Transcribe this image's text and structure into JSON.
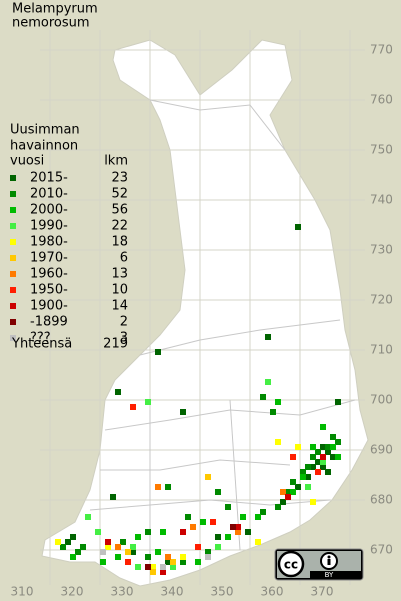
{
  "title": [
    "Melampyrum",
    "nemorosum"
  ],
  "legend": {
    "header": [
      "Uusimman",
      "havainnon",
      "vuosi"
    ],
    "count_header": "lkm",
    "entries": [
      {
        "label": "2015-",
        "count": 23,
        "color": "#006400",
        "squares": [
          [
            359,
            734
          ],
          [
            331,
            709
          ],
          [
            353,
            712
          ],
          [
            336,
            697
          ],
          [
            323,
            701
          ],
          [
            367,
            699
          ],
          [
            364,
            690
          ],
          [
            365,
            689
          ],
          [
            366,
            688
          ],
          [
            363,
            687
          ],
          [
            362,
            686
          ],
          [
            364,
            686
          ],
          [
            361,
            684
          ],
          [
            365,
            685
          ],
          [
            359,
            682
          ],
          [
            356,
            679
          ],
          [
            314,
            672
          ],
          [
            313,
            671
          ],
          [
            326,
            669
          ],
          [
            333,
            667
          ],
          [
            343,
            672
          ],
          [
            349,
            673
          ],
          [
            322,
            680
          ]
        ]
      },
      {
        "label": "2010-",
        "count": 52,
        "color": "#008a00",
        "squares": [
          [
            352,
            700
          ],
          [
            354,
            697
          ],
          [
            366,
            692
          ],
          [
            367,
            691
          ],
          [
            365,
            690
          ],
          [
            363,
            689
          ],
          [
            362,
            688
          ],
          [
            361,
            686
          ],
          [
            360,
            685
          ],
          [
            358,
            683
          ],
          [
            357,
            681
          ],
          [
            355,
            678
          ],
          [
            352,
            677
          ],
          [
            345,
            678
          ],
          [
            343,
            681
          ],
          [
            333,
            682
          ],
          [
            337,
            676
          ],
          [
            329,
            673
          ],
          [
            324,
            671
          ],
          [
            316,
            670
          ],
          [
            315,
            669
          ],
          [
            312,
            670
          ],
          [
            329,
            668
          ],
          [
            336,
            667
          ],
          [
            341,
            669
          ]
        ]
      },
      {
        "label": "2000-",
        "count": 56,
        "color": "#00bb00",
        "squares": [
          [
            355,
            699
          ],
          [
            364,
            694
          ],
          [
            366,
            690
          ],
          [
            367,
            688
          ],
          [
            362,
            690
          ],
          [
            360,
            684
          ],
          [
            358,
            681
          ],
          [
            351,
            676
          ],
          [
            348,
            676
          ],
          [
            340,
            675
          ],
          [
            332,
            673
          ],
          [
            327,
            672
          ],
          [
            323,
            668
          ],
          [
            320,
            667
          ],
          [
            314,
            668
          ],
          [
            311,
            671
          ],
          [
            331,
            669
          ],
          [
            345,
            672
          ],
          [
            339,
            667
          ]
        ]
      },
      {
        "label": "1990-",
        "count": 22,
        "color": "#44ee44",
        "squares": [
          [
            329,
            699
          ],
          [
            353,
            703
          ],
          [
            364,
            687
          ],
          [
            361,
            682
          ],
          [
            317,
            676
          ],
          [
            319,
            673
          ],
          [
            326,
            670
          ],
          [
            334,
            666
          ],
          [
            343,
            670
          ],
          [
            327,
            666
          ]
        ]
      },
      {
        "label": "1980-",
        "count": 18,
        "color": "#ffff00",
        "squares": [
          [
            355,
            691
          ],
          [
            359,
            690
          ],
          [
            362,
            679
          ],
          [
            321,
            670
          ],
          [
            311,
            671
          ],
          [
            336,
            668
          ],
          [
            351,
            671
          ],
          [
            330,
            666
          ]
        ]
      },
      {
        "label": "1970-",
        "count": 6,
        "color": "#ffc800",
        "squares": [
          [
            341,
            684
          ],
          [
            334,
            667
          ],
          [
            325,
            669
          ],
          [
            330,
            665
          ]
        ]
      },
      {
        "label": "1960-",
        "count": 13,
        "color": "#ff7a00",
        "squares": [
          [
            331,
            682
          ],
          [
            356,
            681
          ],
          [
            338,
            674
          ],
          [
            333,
            668
          ],
          [
            323,
            670
          ],
          [
            347,
            673
          ]
        ]
      },
      {
        "label": "1950-",
        "count": 10,
        "color": "#ff1e00",
        "squares": [
          [
            326,
            698
          ],
          [
            358,
            688
          ],
          [
            363,
            685
          ],
          [
            342,
            675
          ],
          [
            325,
            667
          ],
          [
            339,
            670
          ]
        ]
      },
      {
        "label": "1900-",
        "count": 14,
        "color": "#cc0000",
        "squares": [
          [
            364,
            688
          ],
          [
            357,
            680
          ],
          [
            347,
            674
          ],
          [
            332,
            665
          ],
          [
            336,
            673
          ],
          [
            321,
            671
          ]
        ]
      },
      {
        "label": "-1899",
        "count": 2,
        "color": "#800000",
        "squares": [
          [
            346,
            674
          ],
          [
            329,
            666
          ]
        ]
      },
      {
        "label": "???",
        "count": 3,
        "color": "#c0c0c0",
        "squares": [
          [
            320,
            669
          ],
          [
            332,
            666
          ],
          [
            341,
            668
          ]
        ]
      }
    ],
    "total_label": "Yhteensä",
    "total": 219
  },
  "grid": {
    "x_ticks": [
      310,
      320,
      330,
      340,
      350,
      360,
      370
    ],
    "y_ticks": [
      670,
      680,
      690,
      700,
      710,
      720,
      730,
      740,
      750,
      760,
      770
    ]
  },
  "license": {
    "cc": "cc",
    "by": "BY"
  }
}
